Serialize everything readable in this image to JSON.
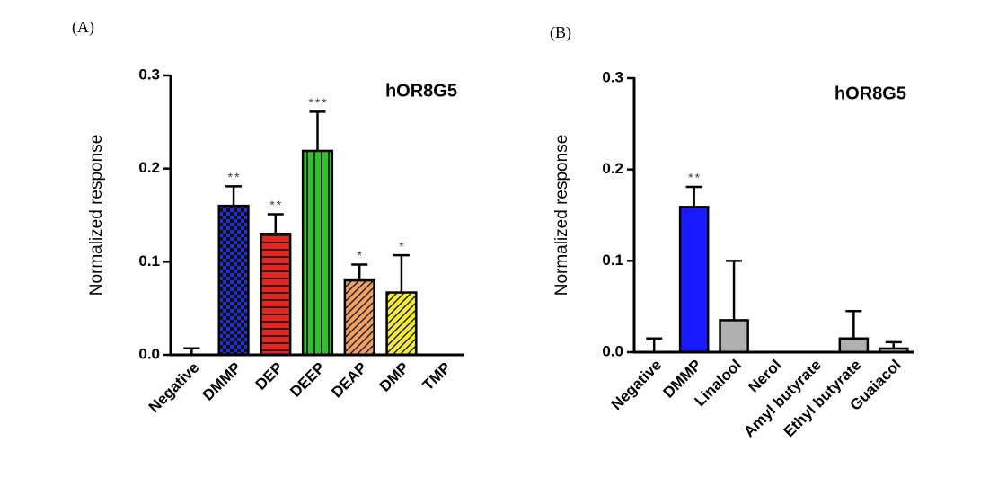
{
  "chart_data": [
    {
      "type": "bar",
      "panel": "(A)",
      "annotation": "hOR8G5",
      "ylabel": "Normalized response",
      "categories": [
        "Negative",
        "DMMP",
        "DEP",
        "DEEP",
        "DEAP",
        "DMP",
        "TMP"
      ],
      "values": [
        0,
        0.16,
        0.13,
        0.219,
        0.08,
        0.067,
        0
      ],
      "errors": [
        0.007,
        0.021,
        0.021,
        0.042,
        0.017,
        0.04,
        0
      ],
      "stars": [
        null,
        "**",
        "**",
        "***",
        "*",
        "*",
        null
      ],
      "colors": [
        "#000000",
        "#1f2fd6",
        "#e8231c",
        "#2fc22c",
        "#f0a060",
        "#f2ea3c",
        "#000000"
      ],
      "fills": [
        "solid",
        "checker",
        "hstripe",
        "vstripe",
        "diag",
        "diag",
        "solid"
      ],
      "ylim": [
        0,
        0.3
      ],
      "yticks": [
        {
          "value": 0,
          "label": "0.0"
        },
        0.1,
        0.2,
        0.3
      ]
    },
    {
      "type": "bar",
      "panel": "(B)",
      "annotation": "hOR8G5",
      "ylabel": "Normalized response",
      "categories": [
        "Negative",
        "DMMP",
        "Linalool",
        "Nerol",
        "Amyl butyrate",
        "Ethyl butyrate",
        "Guaiacol"
      ],
      "values": [
        0,
        0.159,
        0.035,
        0,
        0,
        0.015,
        0.004
      ],
      "errors": [
        0.015,
        0.022,
        0.065,
        0,
        0,
        0.03,
        0.007
      ],
      "stars": [
        null,
        "**",
        null,
        null,
        null,
        null,
        null
      ],
      "colors": [
        "#000000",
        "#1a1aff",
        "#b0b0b0",
        "#b0b0b0",
        "#b0b0b0",
        "#b0b0b0",
        "#b0b0b0"
      ],
      "fills": [
        "solid",
        "solid",
        "solid",
        "solid",
        "solid",
        "solid",
        "solid"
      ],
      "ylim": [
        0,
        0.3
      ],
      "yticks": [
        {
          "value": 0,
          "label": "0.0"
        },
        0.1,
        0.2,
        0.3
      ]
    }
  ]
}
